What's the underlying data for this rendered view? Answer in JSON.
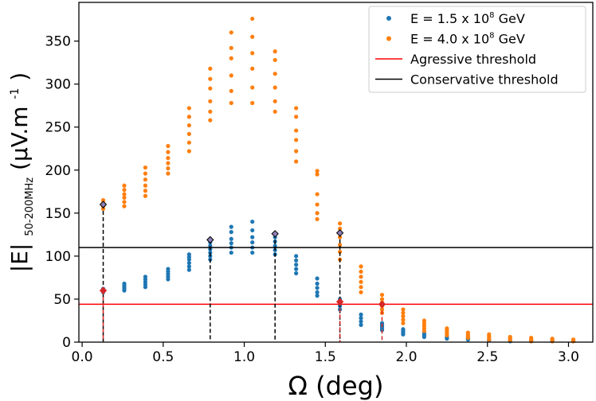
{
  "chart_data": {
    "type": "scatter",
    "xlabel": "Ω (deg)",
    "ylabel": {
      "main": "|E|",
      "sub": "50-200MHz",
      "unit_pre": "(μV.m",
      "unit_sup": "-1",
      "unit_post": ")"
    },
    "xlim": [
      -0.02,
      3.15
    ],
    "ylim": [
      0,
      395
    ],
    "xticks": [
      0.0,
      0.5,
      1.0,
      1.5,
      2.0,
      2.5,
      3.0
    ],
    "xtick_labels": [
      "0.0",
      "0.5",
      "1.0",
      "1.5",
      "2.0",
      "2.5",
      "3.0"
    ],
    "yticks": [
      0,
      50,
      100,
      150,
      200,
      250,
      300,
      350
    ],
    "ytick_labels": [
      "0",
      "50",
      "100",
      "150",
      "200",
      "250",
      "300",
      "350"
    ],
    "legend": {
      "placement": "top-right"
    },
    "series": [
      {
        "name": "E = 1.5 x 10⁸ GeV",
        "name_parts": [
          "E = 1.5 x 10",
          "8",
          " GeV"
        ],
        "color": "#1f77b4",
        "points": [
          [
            0.13,
            58
          ],
          [
            0.13,
            60
          ],
          [
            0.13,
            62
          ],
          [
            0.26,
            60
          ],
          [
            0.26,
            62
          ],
          [
            0.26,
            64
          ],
          [
            0.26,
            66
          ],
          [
            0.26,
            68
          ],
          [
            0.39,
            64
          ],
          [
            0.39,
            67
          ],
          [
            0.39,
            70
          ],
          [
            0.39,
            73
          ],
          [
            0.39,
            76
          ],
          [
            0.53,
            73
          ],
          [
            0.53,
            76
          ],
          [
            0.53,
            79
          ],
          [
            0.53,
            82
          ],
          [
            0.53,
            85
          ],
          [
            0.66,
            84
          ],
          [
            0.66,
            88
          ],
          [
            0.66,
            92
          ],
          [
            0.66,
            96
          ],
          [
            0.66,
            99
          ],
          [
            0.66,
            102
          ],
          [
            0.79,
            96
          ],
          [
            0.79,
            100
          ],
          [
            0.79,
            104
          ],
          [
            0.79,
            108
          ],
          [
            0.79,
            112
          ],
          [
            0.79,
            116
          ],
          [
            0.92,
            104
          ],
          [
            0.92,
            110
          ],
          [
            0.92,
            115
          ],
          [
            0.92,
            120
          ],
          [
            0.92,
            128
          ],
          [
            0.92,
            134
          ],
          [
            1.05,
            104
          ],
          [
            1.05,
            110
          ],
          [
            1.05,
            116
          ],
          [
            1.05,
            122
          ],
          [
            1.05,
            130
          ],
          [
            1.05,
            140
          ],
          [
            1.19,
            102
          ],
          [
            1.19,
            107
          ],
          [
            1.19,
            112
          ],
          [
            1.19,
            117
          ],
          [
            1.19,
            122
          ],
          [
            1.19,
            126
          ],
          [
            1.32,
            80
          ],
          [
            1.32,
            85
          ],
          [
            1.32,
            90
          ],
          [
            1.32,
            95
          ],
          [
            1.32,
            100
          ],
          [
            1.45,
            54
          ],
          [
            1.45,
            58
          ],
          [
            1.45,
            63
          ],
          [
            1.45,
            68
          ],
          [
            1.45,
            74
          ],
          [
            1.59,
            38
          ],
          [
            1.59,
            42
          ],
          [
            1.59,
            46
          ],
          [
            1.59,
            50
          ],
          [
            1.72,
            20
          ],
          [
            1.72,
            24
          ],
          [
            1.72,
            28
          ],
          [
            1.72,
            32
          ],
          [
            1.85,
            14
          ],
          [
            1.85,
            16
          ],
          [
            1.85,
            18
          ],
          [
            1.85,
            20
          ],
          [
            1.85,
            22
          ],
          [
            1.98,
            9
          ],
          [
            1.98,
            11
          ],
          [
            1.98,
            13
          ],
          [
            1.98,
            15
          ],
          [
            2.11,
            6
          ],
          [
            2.11,
            8
          ],
          [
            2.11,
            10
          ],
          [
            2.25,
            4
          ],
          [
            2.25,
            5
          ],
          [
            2.25,
            7
          ],
          [
            2.38,
            3
          ],
          [
            2.38,
            4
          ],
          [
            2.38,
            5
          ],
          [
            2.51,
            2
          ],
          [
            2.51,
            3
          ],
          [
            2.64,
            1
          ],
          [
            2.64,
            2
          ],
          [
            2.77,
            1
          ],
          [
            2.77,
            2
          ],
          [
            2.9,
            1
          ],
          [
            2.9,
            1.5
          ],
          [
            3.03,
            1
          ],
          [
            3.03,
            1.5
          ]
        ]
      },
      {
        "name": "E = 4.0 x 10⁸ GeV",
        "name_parts": [
          "E = 4.0 x 10",
          "8",
          " GeV"
        ],
        "color": "#ff7f0e",
        "points": [
          [
            0.13,
            155
          ],
          [
            0.13,
            158
          ],
          [
            0.13,
            162
          ],
          [
            0.13,
            165
          ],
          [
            0.26,
            158
          ],
          [
            0.26,
            163
          ],
          [
            0.26,
            168
          ],
          [
            0.26,
            172
          ],
          [
            0.26,
            177
          ],
          [
            0.26,
            182
          ],
          [
            0.39,
            170
          ],
          [
            0.39,
            176
          ],
          [
            0.39,
            182
          ],
          [
            0.39,
            189
          ],
          [
            0.39,
            196
          ],
          [
            0.39,
            203
          ],
          [
            0.53,
            196
          ],
          [
            0.53,
            202
          ],
          [
            0.53,
            208
          ],
          [
            0.53,
            214
          ],
          [
            0.53,
            221
          ],
          [
            0.53,
            228
          ],
          [
            0.66,
            222
          ],
          [
            0.66,
            232
          ],
          [
            0.66,
            242
          ],
          [
            0.66,
            252
          ],
          [
            0.66,
            262
          ],
          [
            0.66,
            272
          ],
          [
            0.79,
            258
          ],
          [
            0.79,
            268
          ],
          [
            0.79,
            280
          ],
          [
            0.79,
            295
          ],
          [
            0.79,
            306
          ],
          [
            0.79,
            318
          ],
          [
            0.92,
            278
          ],
          [
            0.92,
            292
          ],
          [
            0.92,
            310
          ],
          [
            0.92,
            330
          ],
          [
            0.92,
            342
          ],
          [
            0.92,
            360
          ],
          [
            1.05,
            278
          ],
          [
            1.05,
            296
          ],
          [
            1.05,
            318
          ],
          [
            1.05,
            336
          ],
          [
            1.05,
            355
          ],
          [
            1.05,
            376
          ],
          [
            1.19,
            268
          ],
          [
            1.19,
            280
          ],
          [
            1.19,
            296
          ],
          [
            1.19,
            312
          ],
          [
            1.19,
            328
          ],
          [
            1.19,
            338
          ],
          [
            1.32,
            210
          ],
          [
            1.32,
            222
          ],
          [
            1.32,
            235
          ],
          [
            1.32,
            246
          ],
          [
            1.32,
            262
          ],
          [
            1.32,
            272
          ],
          [
            1.45,
            143
          ],
          [
            1.45,
            150
          ],
          [
            1.45,
            160
          ],
          [
            1.45,
            172
          ],
          [
            1.45,
            195
          ],
          [
            1.45,
            199
          ],
          [
            1.59,
            96
          ],
          [
            1.59,
            105
          ],
          [
            1.59,
            113
          ],
          [
            1.59,
            122
          ],
          [
            1.59,
            132
          ],
          [
            1.59,
            138
          ],
          [
            1.72,
            58
          ],
          [
            1.72,
            64
          ],
          [
            1.72,
            70
          ],
          [
            1.72,
            76
          ],
          [
            1.72,
            82
          ],
          [
            1.72,
            88
          ],
          [
            1.85,
            34
          ],
          [
            1.85,
            38
          ],
          [
            1.85,
            42
          ],
          [
            1.85,
            46
          ],
          [
            1.85,
            50
          ],
          [
            1.85,
            55
          ],
          [
            1.98,
            22
          ],
          [
            1.98,
            26
          ],
          [
            1.98,
            30
          ],
          [
            1.98,
            34
          ],
          [
            1.98,
            38
          ],
          [
            2.11,
            13
          ],
          [
            2.11,
            16
          ],
          [
            2.11,
            19
          ],
          [
            2.11,
            22
          ],
          [
            2.11,
            25
          ],
          [
            2.25,
            8
          ],
          [
            2.25,
            10
          ],
          [
            2.25,
            12
          ],
          [
            2.25,
            14
          ],
          [
            2.25,
            16
          ],
          [
            2.38,
            5
          ],
          [
            2.38,
            7
          ],
          [
            2.38,
            9
          ],
          [
            2.38,
            11
          ],
          [
            2.51,
            3
          ],
          [
            2.51,
            5
          ],
          [
            2.51,
            7
          ],
          [
            2.51,
            9
          ],
          [
            2.64,
            2
          ],
          [
            2.64,
            4
          ],
          [
            2.64,
            6
          ],
          [
            2.77,
            1
          ],
          [
            2.77,
            3
          ],
          [
            2.77,
            5
          ],
          [
            2.9,
            1
          ],
          [
            2.9,
            3
          ],
          [
            2.9,
            4
          ],
          [
            3.03,
            1
          ],
          [
            3.03,
            2
          ],
          [
            3.03,
            3
          ]
        ]
      }
    ],
    "thresholds": [
      {
        "name": "Agressive threshold",
        "y": 44,
        "color": "#ff0000"
      },
      {
        "name": "Conservative threshold",
        "y": 110,
        "color": "#000000"
      }
    ],
    "vertical_markers": [
      {
        "x": 0.13,
        "y": 160,
        "color": "#000000"
      },
      {
        "x": 0.13,
        "y": 60,
        "color": "#d62728"
      },
      {
        "x": 0.79,
        "y": 119,
        "color": "#000000"
      },
      {
        "x": 1.19,
        "y": 126,
        "color": "#000000"
      },
      {
        "x": 1.59,
        "y": 127,
        "color": "#000000"
      },
      {
        "x": 1.59,
        "y": 47,
        "color": "#d62728"
      },
      {
        "x": 1.85,
        "y": 44,
        "color": "#d62728"
      }
    ]
  }
}
